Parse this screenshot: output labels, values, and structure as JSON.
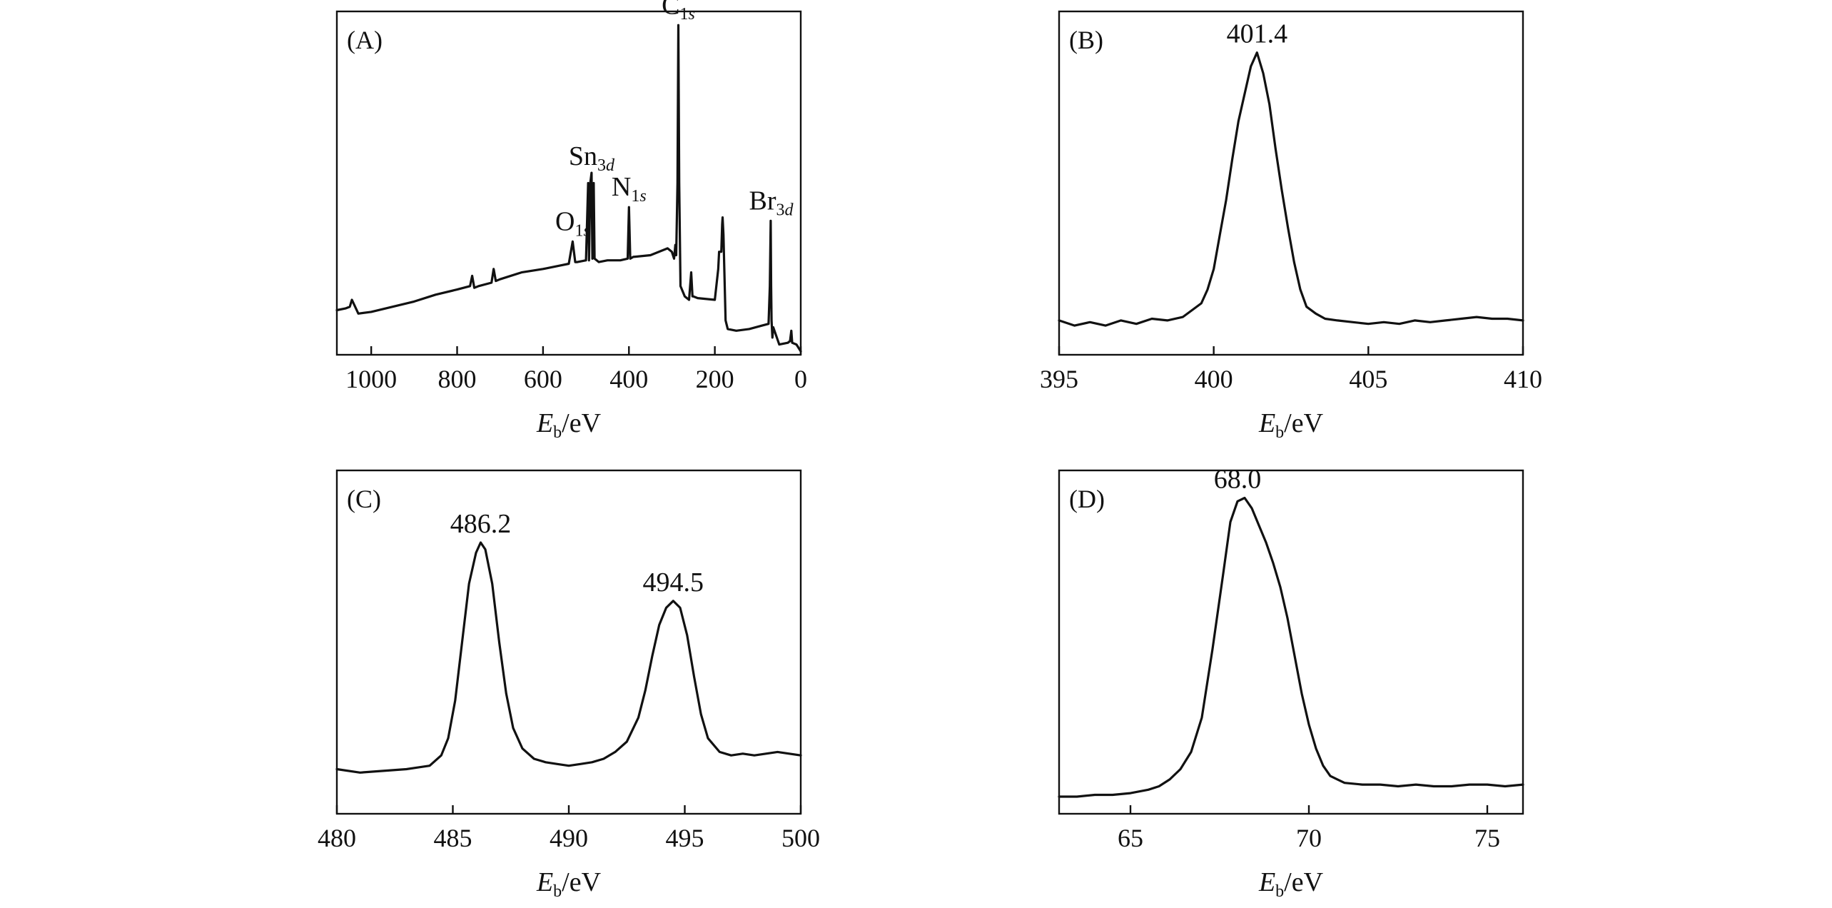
{
  "chart_data": [
    {
      "panel": "(A)",
      "type": "line",
      "xlabel": {
        "main": "E",
        "sub": "b",
        "unit": "/eV"
      },
      "xlim": [
        1080,
        0
      ],
      "x_reversed": true,
      "xticks": [
        1000,
        800,
        600,
        400,
        200,
        0
      ],
      "ylim": [
        0,
        100
      ],
      "yticks": "none",
      "grid": false,
      "annotations": [
        {
          "main": "C",
          "sub": "1s",
          "x": 285,
          "y": 96
        },
        {
          "main": "Sn",
          "sub": "3d",
          "x": 487,
          "y": 52
        },
        {
          "main": "N",
          "sub": "1s",
          "x": 400,
          "y": 43
        },
        {
          "main": "O",
          "sub": "1s",
          "x": 531,
          "y": 33
        },
        {
          "main": "Br",
          "sub": "3d",
          "x": 69,
          "y": 39
        }
      ],
      "series": [
        {
          "x": [
            1080,
            1060,
            1050,
            1045,
            1030,
            1000,
            950,
            900,
            850,
            800,
            770,
            765,
            760,
            750,
            720,
            715,
            710,
            700,
            650,
            600,
            560,
            540,
            531,
            525,
            520,
            500,
            495,
            493,
            490,
            487,
            485,
            482,
            480,
            470,
            450,
            420,
            403,
            400,
            397,
            390,
            350,
            310,
            300,
            295,
            292,
            290,
            287,
            285,
            283,
            280,
            270,
            260,
            255,
            252,
            250,
            240,
            200,
            192,
            190,
            185,
            183,
            182,
            180,
            175,
            170,
            150,
            120,
            90,
            75,
            72,
            70,
            69,
            68,
            66,
            64,
            50,
            30,
            25,
            22,
            20,
            10,
            0
          ],
          "y": [
            13,
            13.5,
            14,
            16,
            12,
            12.5,
            14,
            15.5,
            17.5,
            19,
            20,
            23,
            19.5,
            20,
            21,
            25,
            21.5,
            22,
            24,
            25,
            26,
            26.5,
            33,
            27,
            27,
            27.5,
            50,
            27.5,
            50,
            53,
            28,
            50,
            28,
            27,
            27.5,
            27.5,
            28,
            43,
            28,
            28.5,
            29,
            31,
            30,
            28,
            32,
            29,
            50,
            96,
            50,
            20,
            17,
            16,
            24,
            17,
            17,
            16.5,
            16,
            25,
            30,
            30,
            38,
            40,
            35,
            10,
            7.5,
            7,
            7.5,
            8.5,
            9,
            20,
            39,
            20,
            10,
            5,
            8,
            3,
            3.5,
            4,
            7,
            3.5,
            3,
            1
          ]
        }
      ]
    },
    {
      "panel": "(B)",
      "type": "line",
      "xlabel": {
        "main": "E",
        "sub": "b",
        "unit": "/eV"
      },
      "xlim": [
        395,
        410
      ],
      "xticks": [
        395,
        400,
        405,
        410
      ],
      "ylim": [
        0,
        100
      ],
      "yticks": "none",
      "grid": false,
      "annotations": [
        {
          "text": "401.4",
          "x": 401.4,
          "y": 88
        }
      ],
      "series": [
        {
          "x": [
            395,
            395.5,
            396,
            396.5,
            397,
            397.5,
            398,
            398.5,
            399,
            399.3,
            399.6,
            399.8,
            400,
            400.2,
            400.4,
            400.6,
            400.8,
            401,
            401.2,
            401.4,
            401.6,
            401.8,
            402,
            402.2,
            402.4,
            402.6,
            402.8,
            403,
            403.3,
            403.6,
            404,
            404.5,
            405,
            405.5,
            406,
            406.5,
            407,
            407.5,
            408,
            408.5,
            409,
            409.5,
            410
          ],
          "y": [
            10,
            8.5,
            9.5,
            8.5,
            10,
            9,
            10.5,
            10,
            11,
            13,
            15,
            19,
            25,
            35,
            45,
            57,
            68,
            76,
            84,
            88,
            82,
            73,
            60,
            48,
            37,
            27,
            19,
            14,
            12,
            10.5,
            10,
            9.5,
            9,
            9.5,
            9,
            10,
            9.5,
            10,
            10.5,
            11,
            10.5,
            10.5,
            10
          ]
        }
      ]
    },
    {
      "panel": "(C)",
      "type": "line",
      "xlabel": {
        "main": "E",
        "sub": "b",
        "unit": "/eV"
      },
      "xlim": [
        480,
        500
      ],
      "xticks": [
        480,
        485,
        490,
        495,
        500
      ],
      "ylim": [
        0,
        100
      ],
      "yticks": "none",
      "grid": false,
      "annotations": [
        {
          "text": "486.2",
          "x": 486.2,
          "y": 79
        },
        {
          "text": "494.5",
          "x": 494.5,
          "y": 62
        }
      ],
      "series": [
        {
          "x": [
            480,
            481,
            482,
            483,
            483.5,
            484,
            484.5,
            484.8,
            485.1,
            485.4,
            485.7,
            486,
            486.2,
            486.4,
            486.7,
            487,
            487.3,
            487.6,
            488,
            488.5,
            489,
            489.5,
            490,
            490.5,
            491,
            491.5,
            492,
            492.5,
            493,
            493.3,
            493.6,
            493.9,
            494.2,
            494.5,
            494.8,
            495.1,
            495.4,
            495.7,
            496,
            496.5,
            497,
            497.5,
            498,
            498.5,
            499,
            499.5,
            500
          ],
          "y": [
            13,
            12,
            12.5,
            13,
            13.5,
            14,
            17,
            22,
            33,
            50,
            67,
            76,
            79,
            77,
            67,
            50,
            35,
            25,
            19,
            16,
            15,
            14.5,
            14,
            14.5,
            15,
            16,
            18,
            21,
            28,
            36,
            46,
            55,
            60,
            62,
            60,
            52,
            40,
            29,
            22,
            18,
            17,
            17.5,
            17,
            17.5,
            18,
            17.5,
            17
          ]
        }
      ]
    },
    {
      "panel": "(D)",
      "type": "line",
      "xlabel": {
        "main": "E",
        "sub": "b",
        "unit": "/eV"
      },
      "xlim": [
        63,
        76
      ],
      "xticks": [
        65,
        70,
        75
      ],
      "ylim": [
        0,
        100
      ],
      "yticks": "none",
      "grid": false,
      "annotations": [
        {
          "text": "68.0",
          "x": 68.0,
          "y": 92
        }
      ],
      "series": [
        {
          "x": [
            63,
            63.5,
            64,
            64.5,
            65,
            65.5,
            65.8,
            66.1,
            66.4,
            66.7,
            67,
            67.3,
            67.6,
            67.8,
            68,
            68.2,
            68.4,
            68.6,
            68.8,
            69,
            69.2,
            69.4,
            69.6,
            69.8,
            70,
            70.2,
            70.4,
            70.6,
            70.8,
            71,
            71.5,
            72,
            72.5,
            73,
            73.5,
            74,
            74.5,
            75,
            75.5,
            76
          ],
          "y": [
            5,
            5,
            5.5,
            5.5,
            6,
            7,
            8,
            10,
            13,
            18,
            28,
            48,
            70,
            85,
            91,
            92,
            89,
            84,
            79,
            73,
            66,
            57,
            46,
            35,
            26,
            19,
            14,
            11,
            10,
            9,
            8.5,
            8.5,
            8,
            8.5,
            8,
            8,
            8.5,
            8.5,
            8,
            8.5
          ]
        }
      ]
    }
  ]
}
